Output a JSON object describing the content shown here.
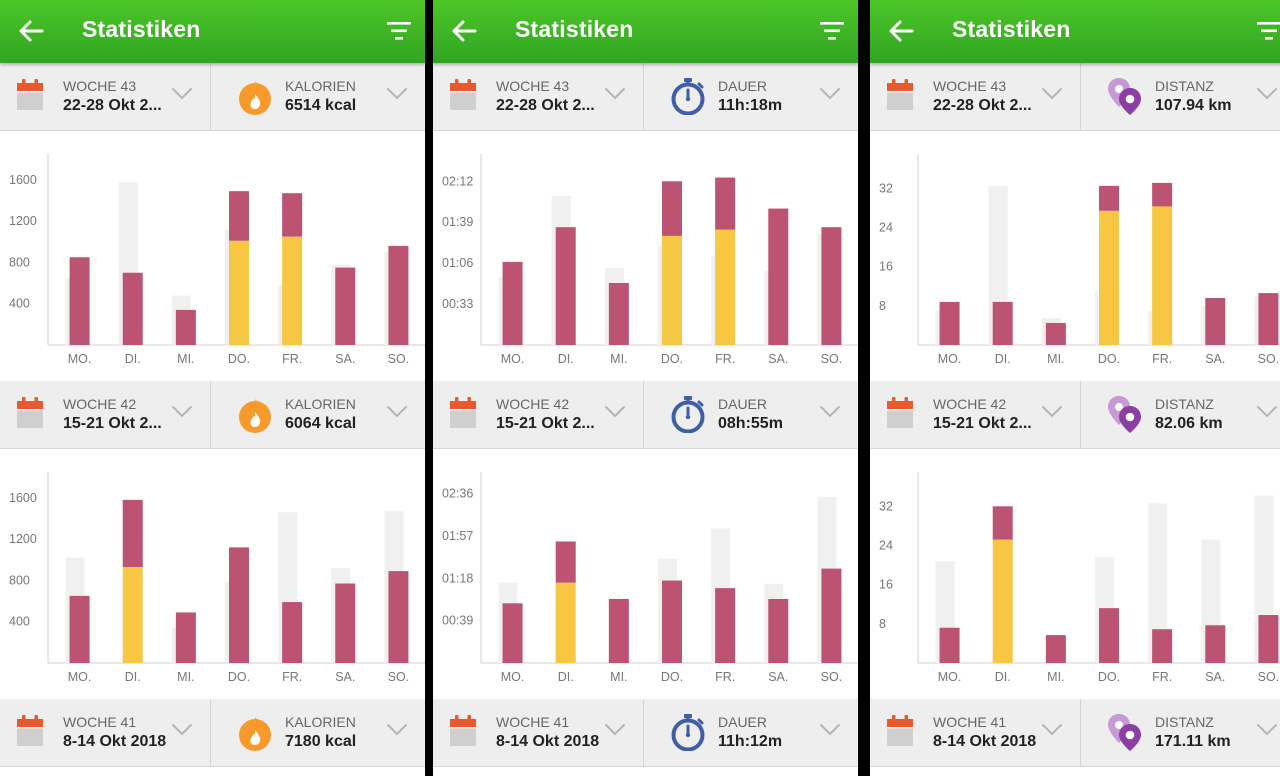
{
  "colors": {
    "accent_green": "#3cb524",
    "bar_primary": "#bd5372",
    "bar_secondary": "#f7c744",
    "bar_ghost": "#f0f0f0",
    "flame": "#f79a2b",
    "stopwatch": "#3f5da8",
    "pin": "#8b3fa2"
  },
  "panels": [
    {
      "title": "Statistiken",
      "metric_icon": "flame-icon",
      "weeks": [
        {
          "week_label": "WOCHE 43",
          "range": "22-28 Okt 2...",
          "metric_label": "KALORIEN",
          "metric_value": "6514 kcal"
        },
        {
          "week_label": "WOCHE 42",
          "range": "15-21 Okt 2...",
          "metric_label": "KALORIEN",
          "metric_value": "6064 kcal"
        },
        {
          "week_label": "WOCHE 41",
          "range": "8-14 Okt 2018",
          "metric_label": "KALORIEN",
          "metric_value": "7180 kcal"
        }
      ],
      "charts": [
        {
          "ymax": 1850,
          "ticks": [
            400,
            800,
            1200,
            1600
          ],
          "tick_labels": [
            "400",
            "800",
            "1200",
            "1600"
          ],
          "categories": [
            "MO.",
            "DI.",
            "MI.",
            "DO.",
            "FR.",
            "SA.",
            "SO."
          ],
          "ghost": [
            650,
            1580,
            480,
            1120,
            580,
            780,
            900
          ],
          "primary": [
            850,
            700,
            340,
            480,
            420,
            750,
            960
          ],
          "secondary": [
            0,
            0,
            0,
            1010,
            1050,
            0,
            0
          ]
        },
        {
          "ymax": 1850,
          "ticks": [
            400,
            800,
            1200,
            1600
          ],
          "tick_labels": [
            "400",
            "800",
            "1200",
            "1600"
          ],
          "categories": [
            "MO.",
            "DI.",
            "MI.",
            "DO.",
            "FR.",
            "SA.",
            "SO."
          ],
          "ghost": [
            1020,
            0,
            340,
            780,
            1460,
            920,
            1470
          ],
          "primary": [
            650,
            650,
            490,
            1120,
            590,
            770,
            890
          ],
          "secondary": [
            0,
            930,
            0,
            0,
            0,
            0,
            0
          ]
        }
      ]
    },
    {
      "title": "Statistiken",
      "metric_icon": "stopwatch-icon",
      "weeks": [
        {
          "week_label": "WOCHE 43",
          "range": "22-28 Okt 2...",
          "metric_label": "DAUER",
          "metric_value": "11h:18m"
        },
        {
          "week_label": "WOCHE 42",
          "range": "15-21 Okt 2...",
          "metric_label": "DAUER",
          "metric_value": "08h:55m"
        },
        {
          "week_label": "WOCHE 41",
          "range": "8-14 Okt 2018",
          "metric_label": "DAUER",
          "metric_value": "11h:12m"
        }
      ],
      "charts": [
        {
          "ymax": 154,
          "ticks": [
            33,
            66,
            99,
            132
          ],
          "tick_labels": [
            "00:33",
            "01:06",
            "01:39",
            "02:12"
          ],
          "categories": [
            "MO.",
            "DI.",
            "MI.",
            "DO.",
            "FR.",
            "SA.",
            "SO."
          ],
          "ghost": [
            55,
            120,
            62,
            80,
            72,
            60,
            90
          ],
          "primary": [
            67,
            95,
            50,
            44,
            42,
            110,
            95
          ],
          "secondary": [
            0,
            0,
            0,
            88,
            93,
            0,
            0
          ]
        },
        {
          "ymax": 176,
          "ticks": [
            39,
            78,
            117,
            156
          ],
          "tick_labels": [
            "00:39",
            "01:18",
            "01:57",
            "02:36"
          ],
          "categories": [
            "MO.",
            "DI.",
            "MI.",
            "DO.",
            "FR.",
            "SA.",
            "SO."
          ],
          "ghost": [
            74,
            0,
            0,
            96,
            124,
            73,
            153
          ],
          "primary": [
            55,
            38,
            59,
            76,
            69,
            59,
            87
          ],
          "secondary": [
            0,
            74,
            0,
            0,
            0,
            0,
            0
          ]
        }
      ]
    },
    {
      "title": "Statistiken",
      "metric_icon": "location-pins-icon",
      "weeks": [
        {
          "week_label": "WOCHE 43",
          "range": "22-28 Okt 2...",
          "metric_label": "DISTANZ",
          "metric_value": "107.94 km"
        },
        {
          "week_label": "WOCHE 42",
          "range": "15-21 Okt 2...",
          "metric_label": "DISTANZ",
          "metric_value": "82.06 km"
        },
        {
          "week_label": "WOCHE 41",
          "range": "8-14 Okt 2018",
          "metric_label": "DISTANZ",
          "metric_value": "171.11 km"
        }
      ],
      "charts": [
        {
          "ymax": 39,
          "ticks": [
            8,
            16,
            24,
            32
          ],
          "tick_labels": [
            "8",
            "16",
            "24",
            "32"
          ],
          "categories": [
            "MO.",
            "DI.",
            "MI.",
            "DO.",
            "FR.",
            "SA.",
            "SO."
          ],
          "ghost": [
            7,
            32.5,
            5.5,
            11,
            7,
            8,
            10
          ],
          "primary": [
            8.8,
            8.8,
            4.5,
            5.1,
            4.8,
            9.6,
            10.6
          ],
          "secondary": [
            0,
            0,
            0,
            27.4,
            28.3,
            0,
            0
          ]
        },
        {
          "ymax": 39,
          "ticks": [
            8,
            16,
            24,
            32
          ],
          "tick_labels": [
            "8",
            "16",
            "24",
            "32"
          ],
          "categories": [
            "MO.",
            "DI.",
            "MI.",
            "DO.",
            "FR.",
            "SA.",
            "SO."
          ],
          "ghost": [
            20.8,
            0,
            0,
            21.6,
            32.6,
            25.2,
            34.2
          ],
          "primary": [
            7.2,
            6.8,
            5.7,
            11.2,
            6.9,
            7.7,
            9.8
          ],
          "secondary": [
            0,
            25.2,
            0,
            0,
            0,
            0,
            0
          ]
        }
      ]
    }
  ]
}
